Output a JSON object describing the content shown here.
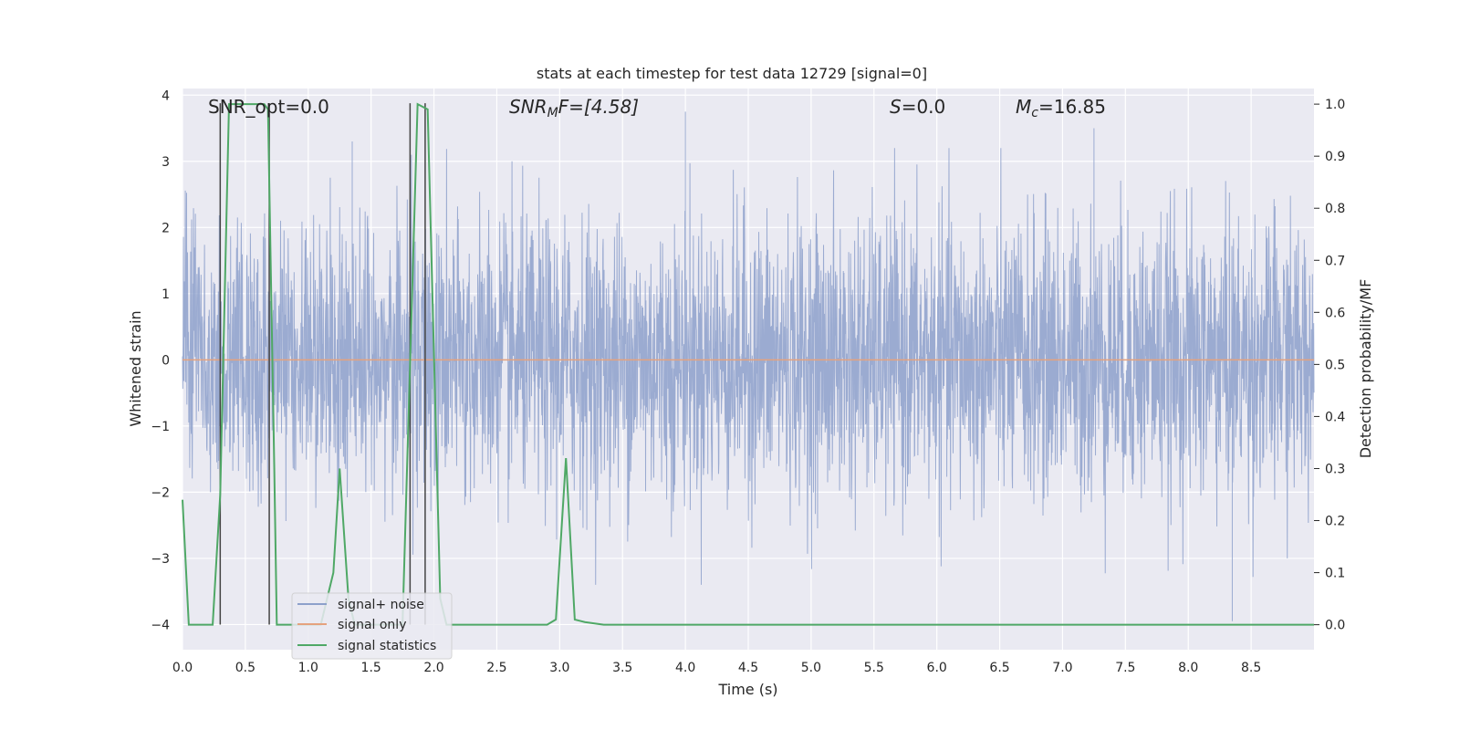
{
  "chart_data": {
    "type": "line",
    "title": "stats at each timestep for test data 12729 [signal=0]",
    "xlabel": "Time (s)",
    "ylabel": "Whitened strain",
    "y2label": "Detection probability/MF",
    "xlim": [
      0,
      9.0
    ],
    "ylim": [
      -4.38,
      4.1
    ],
    "y2lim": [
      -0.048,
      1.03
    ],
    "x_ticks": [
      0.0,
      0.5,
      1.0,
      1.5,
      2.0,
      2.5,
      3.0,
      3.5,
      4.0,
      4.5,
      5.0,
      5.5,
      6.0,
      6.5,
      7.0,
      7.5,
      8.0,
      8.5
    ],
    "y_ticks": [
      -4,
      -3,
      -2,
      -1,
      0,
      1,
      2,
      3,
      4
    ],
    "y2_ticks": [
      0.0,
      0.1,
      0.2,
      0.3,
      0.4,
      0.5,
      0.6,
      0.7,
      0.8,
      0.9,
      1.0
    ],
    "grid": true,
    "legend_position": "lower-left",
    "annotations": {
      "snr_opt": "SNR_opt=0.0",
      "snr_mf_base": "SNR",
      "snr_mf_sub": "M",
      "snr_mf_rest": "F=[4.58]",
      "s_base": "S",
      "s_rest": "=0.0",
      "mc_base": "M",
      "mc_sub": "c",
      "mc_rest": "=16.85"
    },
    "series": [
      {
        "name": "signal+ noise",
        "color": "#8da0cb",
        "description_stats": {
          "spike_peaks": [
            [
              0.3,
              3.1
            ],
            [
              1.35,
              3.3
            ],
            [
              4.0,
              3.75
            ],
            [
              7.25,
              3.5
            ],
            [
              8.35,
              -3.95
            ]
          ]
        }
      },
      {
        "name": "signal only",
        "color": "#e5a27e",
        "x": [
          0.0,
          9.0
        ],
        "y": [
          0.0,
          0.0
        ]
      },
      {
        "name": "signal statistics",
        "color": "#4fa866",
        "axis": "right",
        "x": [
          0.0,
          0.05,
          0.24,
          0.3,
          0.37,
          0.65,
          0.68,
          0.73,
          0.75,
          1.1,
          1.2,
          1.25,
          1.32,
          1.37,
          1.75,
          1.87,
          1.95,
          2.05,
          2.1,
          2.2,
          2.9,
          2.97,
          3.05,
          3.12,
          3.2,
          3.35,
          9.0
        ],
        "y": [
          0.24,
          0.0,
          0.0,
          0.25,
          1.0,
          1.0,
          0.99,
          0.3,
          0.0,
          0.0,
          0.1,
          0.3,
          0.05,
          0.0,
          0.0,
          1.0,
          0.99,
          0.05,
          0.0,
          0.0,
          0.0,
          0.01,
          0.32,
          0.01,
          0.005,
          0.0,
          0.0
        ]
      }
    ],
    "vertical_lines": [
      {
        "x": 0.3,
        "color": "#444444"
      },
      {
        "x": 0.69,
        "color": "#444444"
      },
      {
        "x": 1.81,
        "color": "#444444"
      },
      {
        "x": 1.93,
        "color": "#444444"
      }
    ]
  }
}
